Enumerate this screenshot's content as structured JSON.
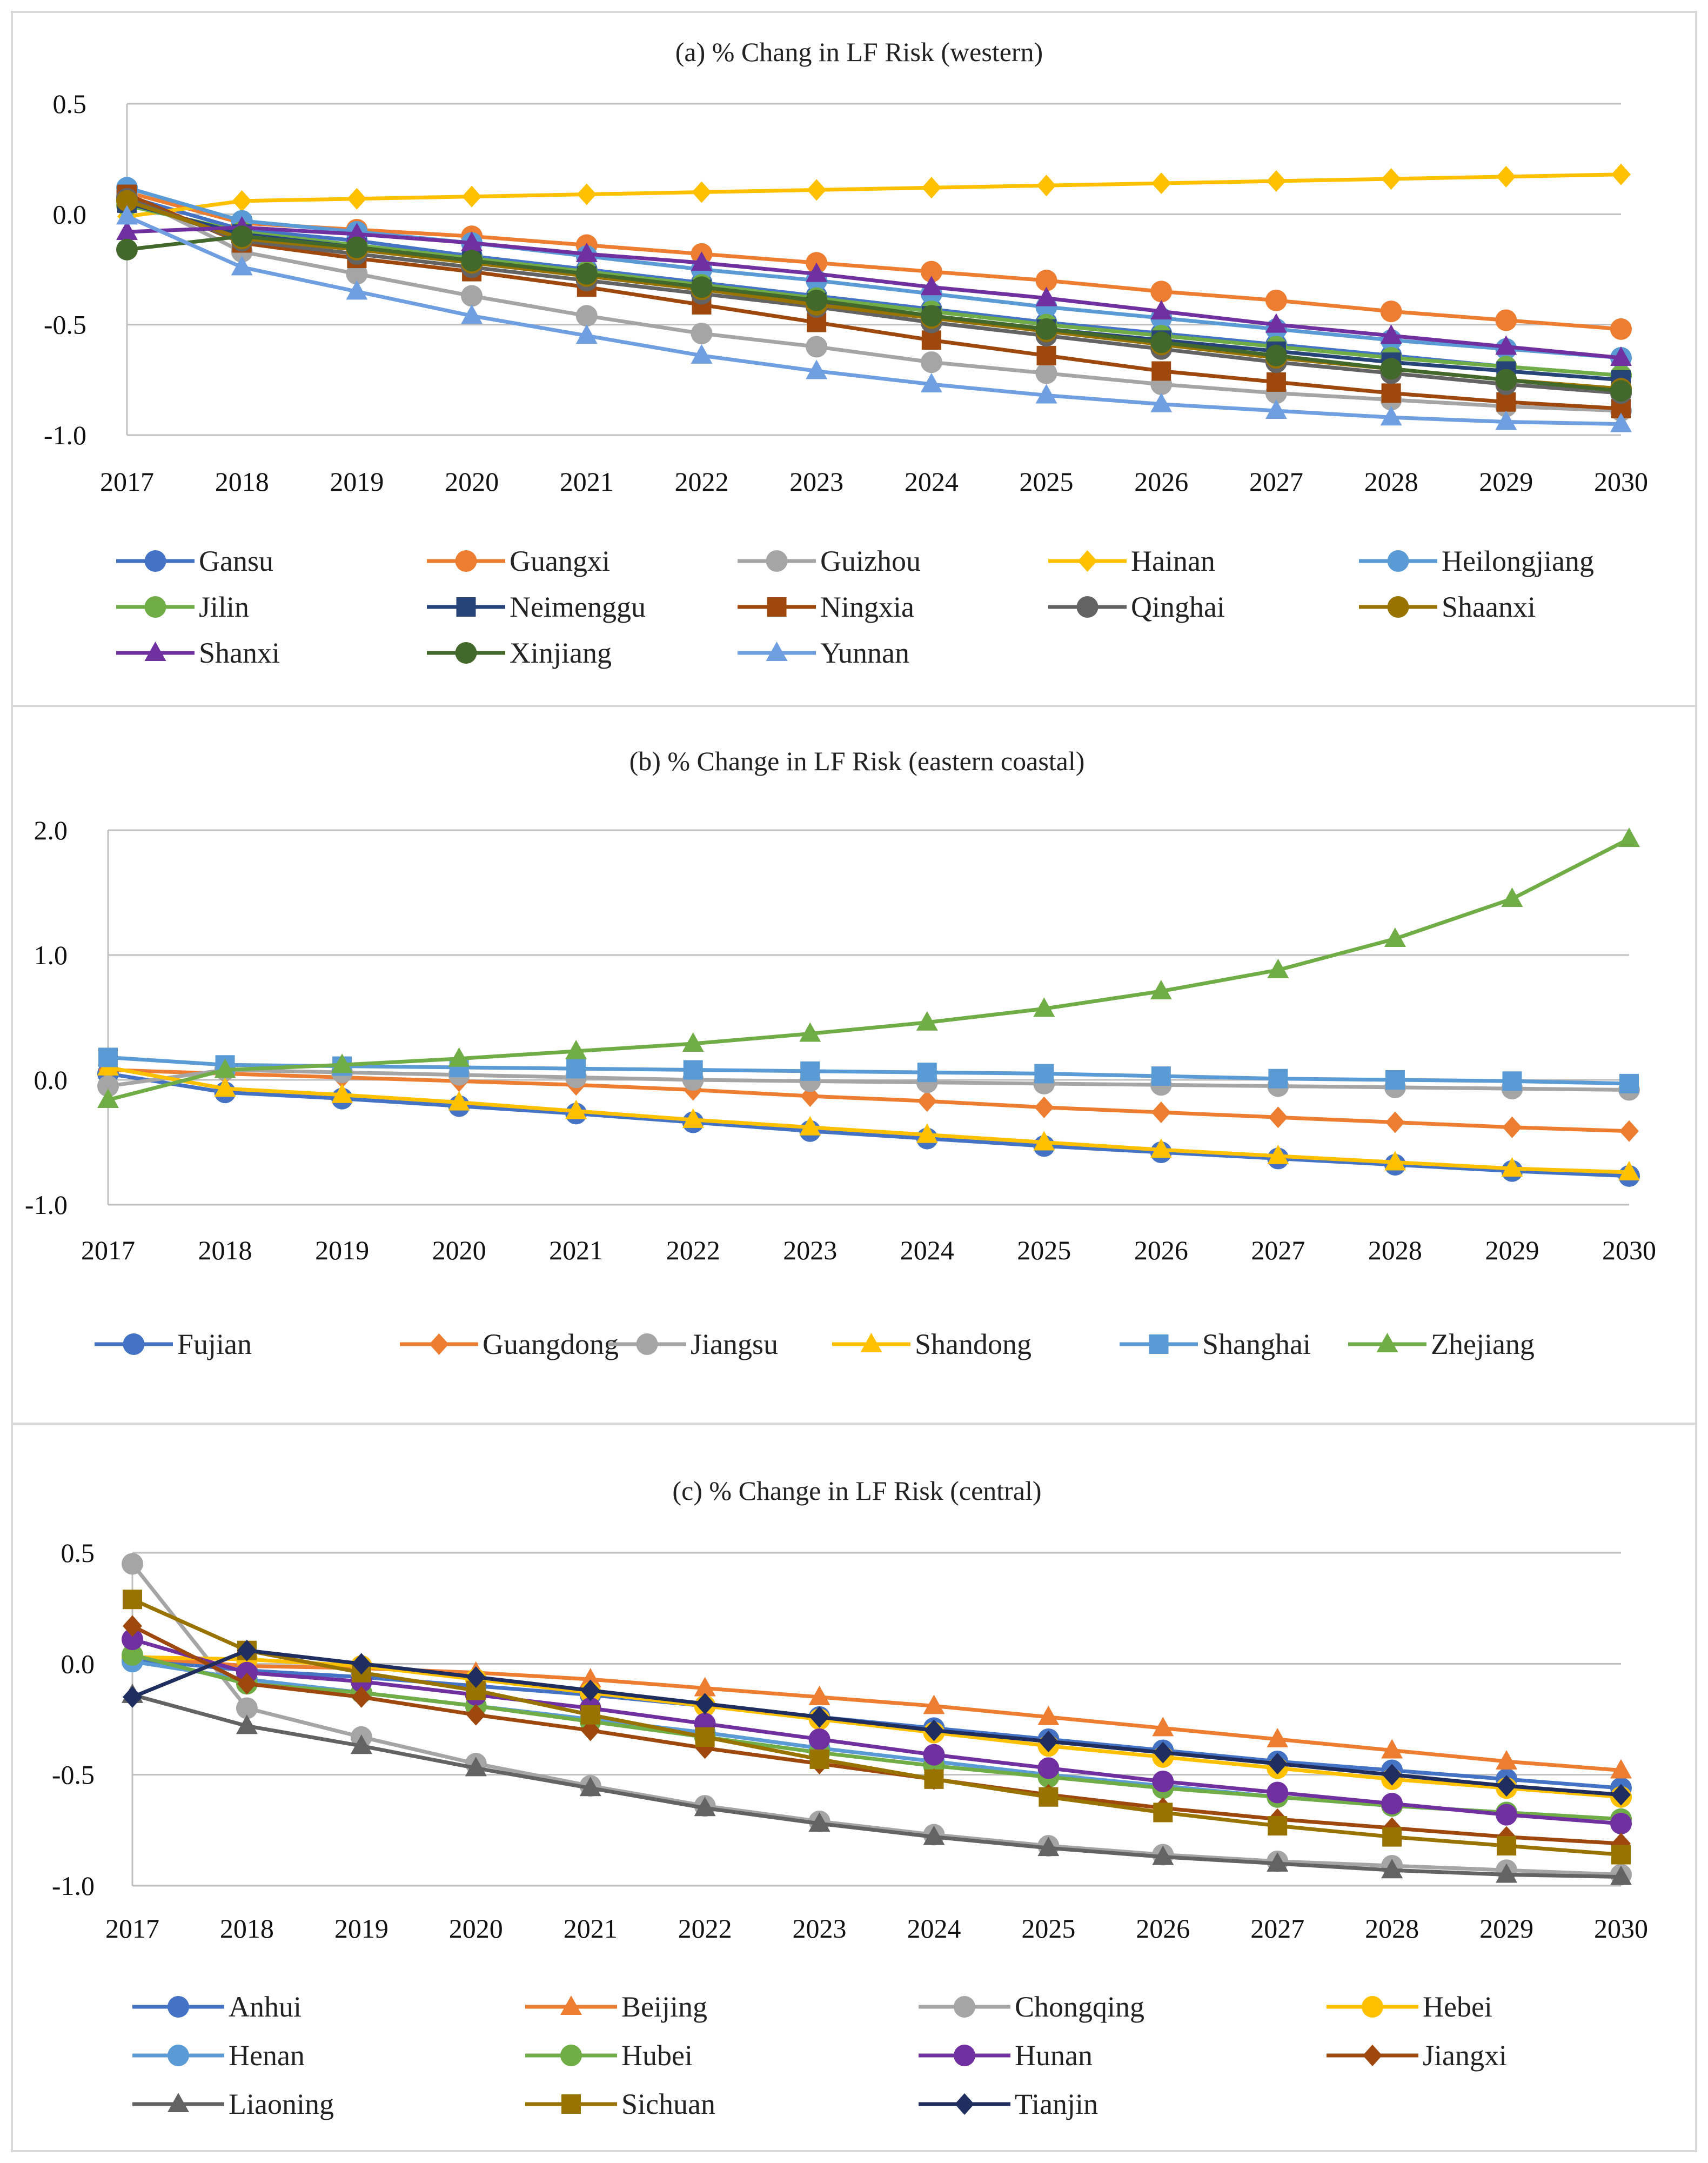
{
  "chart_data": [
    {
      "type": "line",
      "title": "(a) % Chang in LF Risk (western)",
      "xlabel": "",
      "ylabel": "",
      "ylim": [
        -1.0,
        0.5
      ],
      "yticks": [
        0.5,
        0.0,
        -0.5,
        -1.0
      ],
      "ytick_labels": [
        "0.5",
        "0.0",
        "-0.5",
        "-1.0"
      ],
      "categories": [
        "2017",
        "2018",
        "2019",
        "2020",
        "2021",
        "2022",
        "2023",
        "2024",
        "2025",
        "2026",
        "2027",
        "2028",
        "2029",
        "2030"
      ],
      "legend_position": "bottom",
      "series": [
        {
          "name": "Gansu",
          "color": "#4472C4",
          "marker": "circle",
          "values": [
            0.08,
            -0.07,
            -0.12,
            -0.19,
            -0.25,
            -0.31,
            -0.37,
            -0.43,
            -0.49,
            -0.54,
            -0.59,
            -0.64,
            -0.69,
            -0.73
          ]
        },
        {
          "name": "Guangxi",
          "color": "#ED7D31",
          "marker": "circle",
          "values": [
            0.1,
            -0.04,
            -0.07,
            -0.1,
            -0.14,
            -0.18,
            -0.22,
            -0.26,
            -0.3,
            -0.35,
            -0.39,
            -0.44,
            -0.48,
            -0.52
          ]
        },
        {
          "name": "Guizhou",
          "color": "#A5A5A5",
          "marker": "circle",
          "values": [
            0.09,
            -0.17,
            -0.27,
            -0.37,
            -0.46,
            -0.54,
            -0.6,
            -0.67,
            -0.72,
            -0.77,
            -0.81,
            -0.84,
            -0.87,
            -0.89
          ]
        },
        {
          "name": "Hainan",
          "color": "#FFC000",
          "marker": "diamond",
          "values": [
            -0.01,
            0.06,
            0.07,
            0.08,
            0.09,
            0.1,
            0.11,
            0.12,
            0.13,
            0.14,
            0.15,
            0.16,
            0.17,
            0.18
          ]
        },
        {
          "name": "Heilongjiang",
          "color": "#5B9BD5",
          "marker": "circle",
          "values": [
            0.12,
            -0.03,
            -0.08,
            -0.13,
            -0.19,
            -0.25,
            -0.3,
            -0.36,
            -0.42,
            -0.47,
            -0.52,
            -0.57,
            -0.61,
            -0.65
          ]
        },
        {
          "name": "Jilin",
          "color": "#70AD47",
          "marker": "circle",
          "values": [
            0.04,
            -0.08,
            -0.14,
            -0.2,
            -0.26,
            -0.32,
            -0.38,
            -0.44,
            -0.5,
            -0.55,
            -0.6,
            -0.65,
            -0.69,
            -0.73
          ]
        },
        {
          "name": "Neimenggu",
          "color": "#264478",
          "marker": "square",
          "values": [
            0.05,
            -0.09,
            -0.15,
            -0.21,
            -0.28,
            -0.34,
            -0.4,
            -0.46,
            -0.52,
            -0.57,
            -0.62,
            -0.67,
            -0.71,
            -0.75
          ]
        },
        {
          "name": "Ningxia",
          "color": "#9E480E",
          "marker": "square",
          "values": [
            0.09,
            -0.13,
            -0.2,
            -0.26,
            -0.33,
            -0.41,
            -0.49,
            -0.57,
            -0.64,
            -0.71,
            -0.76,
            -0.81,
            -0.85,
            -0.88
          ]
        },
        {
          "name": "Qinghai",
          "color": "#636363",
          "marker": "circle",
          "values": [
            0.07,
            -0.12,
            -0.18,
            -0.24,
            -0.3,
            -0.36,
            -0.42,
            -0.49,
            -0.55,
            -0.61,
            -0.67,
            -0.72,
            -0.77,
            -0.81
          ]
        },
        {
          "name": "Shaanxi",
          "color": "#997300",
          "marker": "circle",
          "values": [
            0.06,
            -0.11,
            -0.16,
            -0.22,
            -0.28,
            -0.34,
            -0.41,
            -0.47,
            -0.53,
            -0.59,
            -0.65,
            -0.7,
            -0.75,
            -0.79
          ]
        },
        {
          "name": "Shanxi",
          "color": "#7030A0",
          "marker": "triangle",
          "values": [
            -0.08,
            -0.06,
            -0.09,
            -0.13,
            -0.18,
            -0.22,
            -0.27,
            -0.33,
            -0.38,
            -0.44,
            -0.5,
            -0.55,
            -0.6,
            -0.65
          ]
        },
        {
          "name": "Xinjiang",
          "color": "#43682B",
          "marker": "circle",
          "values": [
            -0.16,
            -0.1,
            -0.15,
            -0.21,
            -0.27,
            -0.33,
            -0.39,
            -0.46,
            -0.52,
            -0.58,
            -0.64,
            -0.7,
            -0.75,
            -0.8
          ]
        },
        {
          "name": "Yunnan",
          "color": "#6F9FE0",
          "marker": "triangle",
          "values": [
            -0.01,
            -0.24,
            -0.35,
            -0.46,
            -0.55,
            -0.64,
            -0.71,
            -0.77,
            -0.82,
            -0.86,
            -0.89,
            -0.92,
            -0.94,
            -0.95
          ]
        }
      ]
    },
    {
      "type": "line",
      "title": "(b) % Change in LF Risk (eastern coastal)",
      "xlabel": "",
      "ylabel": "",
      "ylim": [
        -1.0,
        2.0
      ],
      "yticks": [
        2.0,
        1.0,
        0.0,
        -1.0
      ],
      "ytick_labels": [
        "2.0",
        "1.0",
        "0.0",
        "-1.0"
      ],
      "categories": [
        "2017",
        "2018",
        "2019",
        "2020",
        "2021",
        "2022",
        "2023",
        "2024",
        "2025",
        "2026",
        "2027",
        "2028",
        "2029",
        "2030"
      ],
      "legend_position": "bottom",
      "series": [
        {
          "name": "Fujian",
          "color": "#4472C4",
          "marker": "circle",
          "values": [
            0.05,
            -0.1,
            -0.15,
            -0.21,
            -0.27,
            -0.34,
            -0.41,
            -0.47,
            -0.53,
            -0.58,
            -0.63,
            -0.68,
            -0.73,
            -0.77
          ]
        },
        {
          "name": "Guangdong",
          "color": "#ED7D31",
          "marker": "diamond",
          "values": [
            0.08,
            0.05,
            0.02,
            -0.01,
            -0.04,
            -0.08,
            -0.13,
            -0.17,
            -0.22,
            -0.26,
            -0.3,
            -0.34,
            -0.38,
            -0.41
          ]
        },
        {
          "name": "Jiangsu",
          "color": "#A5A5A5",
          "marker": "circle",
          "values": [
            -0.05,
            0.08,
            0.06,
            0.04,
            0.02,
            0.0,
            -0.01,
            -0.02,
            -0.03,
            -0.04,
            -0.05,
            -0.06,
            -0.07,
            -0.08
          ]
        },
        {
          "name": "Shandong",
          "color": "#FFC000",
          "marker": "triangle",
          "values": [
            0.1,
            -0.07,
            -0.12,
            -0.18,
            -0.25,
            -0.32,
            -0.38,
            -0.44,
            -0.5,
            -0.56,
            -0.61,
            -0.66,
            -0.71,
            -0.74
          ]
        },
        {
          "name": "Shanghai",
          "color": "#5B9BD5",
          "marker": "square",
          "values": [
            0.18,
            0.12,
            0.11,
            0.1,
            0.09,
            0.08,
            0.07,
            0.06,
            0.05,
            0.03,
            0.01,
            0.0,
            -0.01,
            -0.03
          ]
        },
        {
          "name": "Zhejiang",
          "color": "#70AD47",
          "marker": "triangle",
          "values": [
            -0.16,
            0.08,
            0.12,
            0.17,
            0.23,
            0.29,
            0.37,
            0.46,
            0.57,
            0.71,
            0.88,
            1.13,
            1.45,
            1.93
          ]
        }
      ]
    },
    {
      "type": "line",
      "title": "(c) % Change in LF Risk (central)",
      "xlabel": "",
      "ylabel": "",
      "ylim": [
        -1.0,
        0.5
      ],
      "yticks": [
        0.5,
        0.0,
        -0.5,
        -1.0
      ],
      "ytick_labels": [
        "0.5",
        "0.0",
        "-0.5",
        "-1.0"
      ],
      "categories": [
        "2017",
        "2018",
        "2019",
        "2020",
        "2021",
        "2022",
        "2023",
        "2024",
        "2025",
        "2026",
        "2027",
        "2028",
        "2029",
        "2030"
      ],
      "legend_position": "bottom",
      "series": [
        {
          "name": "Anhui",
          "color": "#4472C4",
          "marker": "circle",
          "values": [
            0.02,
            -0.03,
            -0.06,
            -0.1,
            -0.14,
            -0.19,
            -0.24,
            -0.29,
            -0.34,
            -0.39,
            -0.44,
            -0.48,
            -0.52,
            -0.56
          ]
        },
        {
          "name": "Beijing",
          "color": "#ED7D31",
          "marker": "triangle",
          "values": [
            0.03,
            -0.01,
            -0.02,
            -0.04,
            -0.07,
            -0.11,
            -0.15,
            -0.19,
            -0.24,
            -0.29,
            -0.34,
            -0.39,
            -0.44,
            -0.48
          ]
        },
        {
          "name": "Chongqing",
          "color": "#A5A5A5",
          "marker": "circle",
          "values": [
            0.45,
            -0.2,
            -0.33,
            -0.45,
            -0.55,
            -0.64,
            -0.71,
            -0.77,
            -0.82,
            -0.86,
            -0.89,
            -0.91,
            -0.93,
            -0.95
          ]
        },
        {
          "name": "Hebei",
          "color": "#FFC000",
          "marker": "circle",
          "values": [
            0.03,
            0.02,
            -0.01,
            -0.07,
            -0.13,
            -0.19,
            -0.25,
            -0.31,
            -0.37,
            -0.42,
            -0.47,
            -0.52,
            -0.56,
            -0.6
          ]
        },
        {
          "name": "Henan",
          "color": "#5B9BD5",
          "marker": "circle",
          "values": [
            0.01,
            -0.07,
            -0.13,
            -0.19,
            -0.25,
            -0.31,
            -0.38,
            -0.44,
            -0.5,
            -0.55,
            -0.6,
            -0.64,
            -0.67,
            -0.7
          ]
        },
        {
          "name": "Hubei",
          "color": "#70AD47",
          "marker": "circle",
          "values": [
            0.04,
            -0.09,
            -0.13,
            -0.19,
            -0.26,
            -0.33,
            -0.4,
            -0.46,
            -0.51,
            -0.56,
            -0.6,
            -0.64,
            -0.67,
            -0.7
          ]
        },
        {
          "name": "Hunan",
          "color": "#7030A0",
          "marker": "circle",
          "values": [
            0.11,
            -0.04,
            -0.08,
            -0.14,
            -0.2,
            -0.27,
            -0.34,
            -0.41,
            -0.47,
            -0.53,
            -0.58,
            -0.63,
            -0.68,
            -0.72
          ]
        },
        {
          "name": "Jiangxi",
          "color": "#9E480E",
          "marker": "diamond",
          "values": [
            0.17,
            -0.09,
            -0.15,
            -0.23,
            -0.3,
            -0.38,
            -0.45,
            -0.52,
            -0.59,
            -0.65,
            -0.7,
            -0.74,
            -0.78,
            -0.81
          ]
        },
        {
          "name": "Liaoning",
          "color": "#636363",
          "marker": "triangle",
          "values": [
            -0.14,
            -0.28,
            -0.37,
            -0.47,
            -0.56,
            -0.65,
            -0.72,
            -0.78,
            -0.83,
            -0.87,
            -0.9,
            -0.93,
            -0.95,
            -0.96
          ]
        },
        {
          "name": "Sichuan",
          "color": "#997300",
          "marker": "square",
          "values": [
            0.29,
            0.06,
            -0.04,
            -0.12,
            -0.23,
            -0.33,
            -0.43,
            -0.52,
            -0.6,
            -0.67,
            -0.73,
            -0.78,
            -0.82,
            -0.86
          ]
        },
        {
          "name": "Tianjin",
          "color": "#1F2E5E",
          "marker": "diamond",
          "values": [
            -0.15,
            0.06,
            0.0,
            -0.06,
            -0.12,
            -0.18,
            -0.24,
            -0.3,
            -0.35,
            -0.4,
            -0.45,
            -0.5,
            -0.55,
            -0.59
          ]
        }
      ]
    }
  ]
}
